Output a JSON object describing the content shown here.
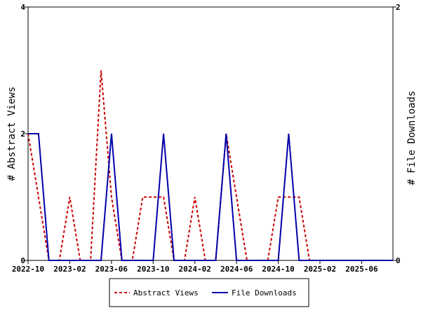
{
  "chart_data": {
    "type": "line",
    "xlabel": "",
    "ylabel_left": "# Abstract Views",
    "ylabel_right": "# File Downloads",
    "ylim_left": [
      0,
      4
    ],
    "ylim_right": [
      0,
      2
    ],
    "yticks_left": [
      "0",
      "2",
      "4"
    ],
    "yticks_right": [
      "0",
      "2"
    ],
    "x_range": [
      "2022-10",
      "2025-09"
    ],
    "x_tick_labels": [
      "2022-10",
      "2023-02",
      "2023-06",
      "2023-10",
      "2024-02",
      "2024-06",
      "2024-10",
      "2025-02",
      "2025-06"
    ],
    "x": [
      "2022-10",
      "2022-11",
      "2022-12",
      "2023-01",
      "2023-02",
      "2023-03",
      "2023-04",
      "2023-05",
      "2023-06",
      "2023-07",
      "2023-08",
      "2023-09",
      "2023-10",
      "2023-11",
      "2023-12",
      "2024-01",
      "2024-02",
      "2024-03",
      "2024-04",
      "2024-05",
      "2024-06",
      "2024-07",
      "2024-08",
      "2024-09",
      "2024-10",
      "2024-11",
      "2024-12",
      "2025-01",
      "2025-02",
      "2025-03",
      "2025-04",
      "2025-05",
      "2025-06",
      "2025-07",
      "2025-08",
      "2025-09"
    ],
    "series": [
      {
        "name": "Abstract Views",
        "axis": "left",
        "color": "#cc0000",
        "dash": true,
        "values": [
          2,
          1,
          0,
          0,
          1,
          0,
          0,
          3,
          1,
          0,
          0,
          1,
          1,
          1,
          0,
          0,
          1,
          0,
          0,
          2,
          1,
          0,
          0,
          0,
          1,
          1,
          1,
          0,
          0,
          0,
          0,
          0,
          0,
          0,
          0,
          0
        ]
      },
      {
        "name": "File Downloads",
        "axis": "right",
        "color": "#0000aa",
        "dash": false,
        "values": [
          1,
          1,
          0,
          0,
          0,
          0,
          0,
          0,
          1,
          0,
          0,
          0,
          0,
          1,
          0,
          0,
          0,
          0,
          0,
          1,
          0,
          0,
          0,
          0,
          0,
          1,
          0,
          0,
          0,
          0,
          0,
          0,
          0,
          0,
          0,
          0
        ]
      }
    ],
    "grid": false,
    "legend_position": "bottom"
  }
}
